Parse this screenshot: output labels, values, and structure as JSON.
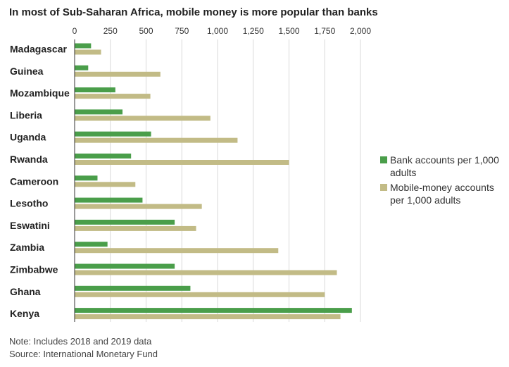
{
  "chart_data": {
    "type": "bar",
    "orientation": "horizontal",
    "title": "In most of Sub-Saharan Africa, mobile money is more popular than banks",
    "xlim": [
      0,
      2000
    ],
    "x_ticks": [
      0,
      250,
      500,
      750,
      1000,
      1250,
      1500,
      1750,
      2000
    ],
    "x_tick_labels": [
      "0",
      "250",
      "500",
      "750",
      "1,000",
      "1,250",
      "1,500",
      "1,750",
      "2,000"
    ],
    "x_axis_position": "top",
    "grid": "vertical",
    "legend_position": "right",
    "categories": [
      "Madagascar",
      "Guinea",
      "Mozambique",
      "Liberia",
      "Uganda",
      "Rwanda",
      "Cameroon",
      "Lesotho",
      "Eswatini",
      "Zambia",
      "Zimbabwe",
      "Ghana",
      "Kenya"
    ],
    "series": [
      {
        "name": "Bank accounts per 1,000 adults",
        "color": "#4a9e4a",
        "values": [
          115,
          95,
          285,
          335,
          535,
          395,
          160,
          475,
          700,
          230,
          700,
          810,
          1940
        ]
      },
      {
        "name": "Mobile-money accounts per 1,000 adults",
        "color": "#c2bb86",
        "values": [
          185,
          600,
          530,
          950,
          1140,
          1500,
          425,
          890,
          850,
          1425,
          1835,
          1750,
          1860
        ]
      }
    ]
  },
  "legend": {
    "bank_label": "Bank accounts per 1,000 adults",
    "mobile_label": "Mobile-money accounts per 1,000 adults"
  },
  "footer": {
    "note": "Note: Includes 2018 and 2019 data",
    "source": "Source: International Monetary Fund"
  }
}
